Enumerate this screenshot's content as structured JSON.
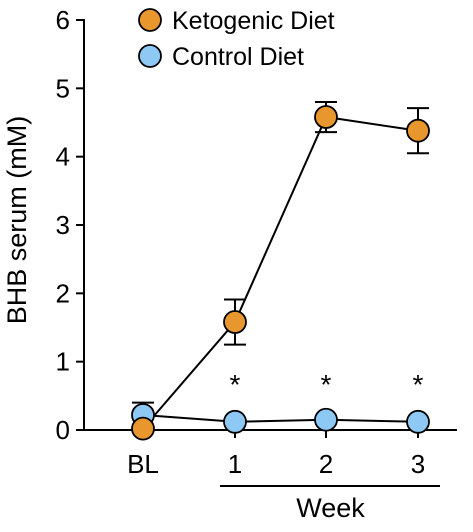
{
  "chart_data": {
    "type": "line",
    "title": "",
    "ylabel": "BHB serum (mM)",
    "xlabel": "Week",
    "ylim": [
      0,
      6
    ],
    "yticks": [
      0,
      1,
      2,
      3,
      4,
      5,
      6
    ],
    "categories": [
      "BL",
      "1",
      "2",
      "3"
    ],
    "grid": false,
    "legend_position": "top-left",
    "series": [
      {
        "name": "Ketogenic Diet",
        "color": "#E8962E",
        "values": [
          0.02,
          1.58,
          4.58,
          4.38
        ],
        "error": [
          0.03,
          0.33,
          0.22,
          0.33
        ]
      },
      {
        "name": "Control Diet",
        "color": "#8EC8F4",
        "values": [
          0.22,
          0.12,
          0.15,
          0.12
        ],
        "error": [
          0.18,
          0.05,
          0.05,
          0.05
        ]
      }
    ],
    "annotations": [
      {
        "category": "1",
        "text": "*"
      },
      {
        "category": "2",
        "text": "*"
      },
      {
        "category": "3",
        "text": "*"
      }
    ],
    "bracket_label": "Week",
    "bracket_categories": [
      "1",
      "3"
    ]
  }
}
